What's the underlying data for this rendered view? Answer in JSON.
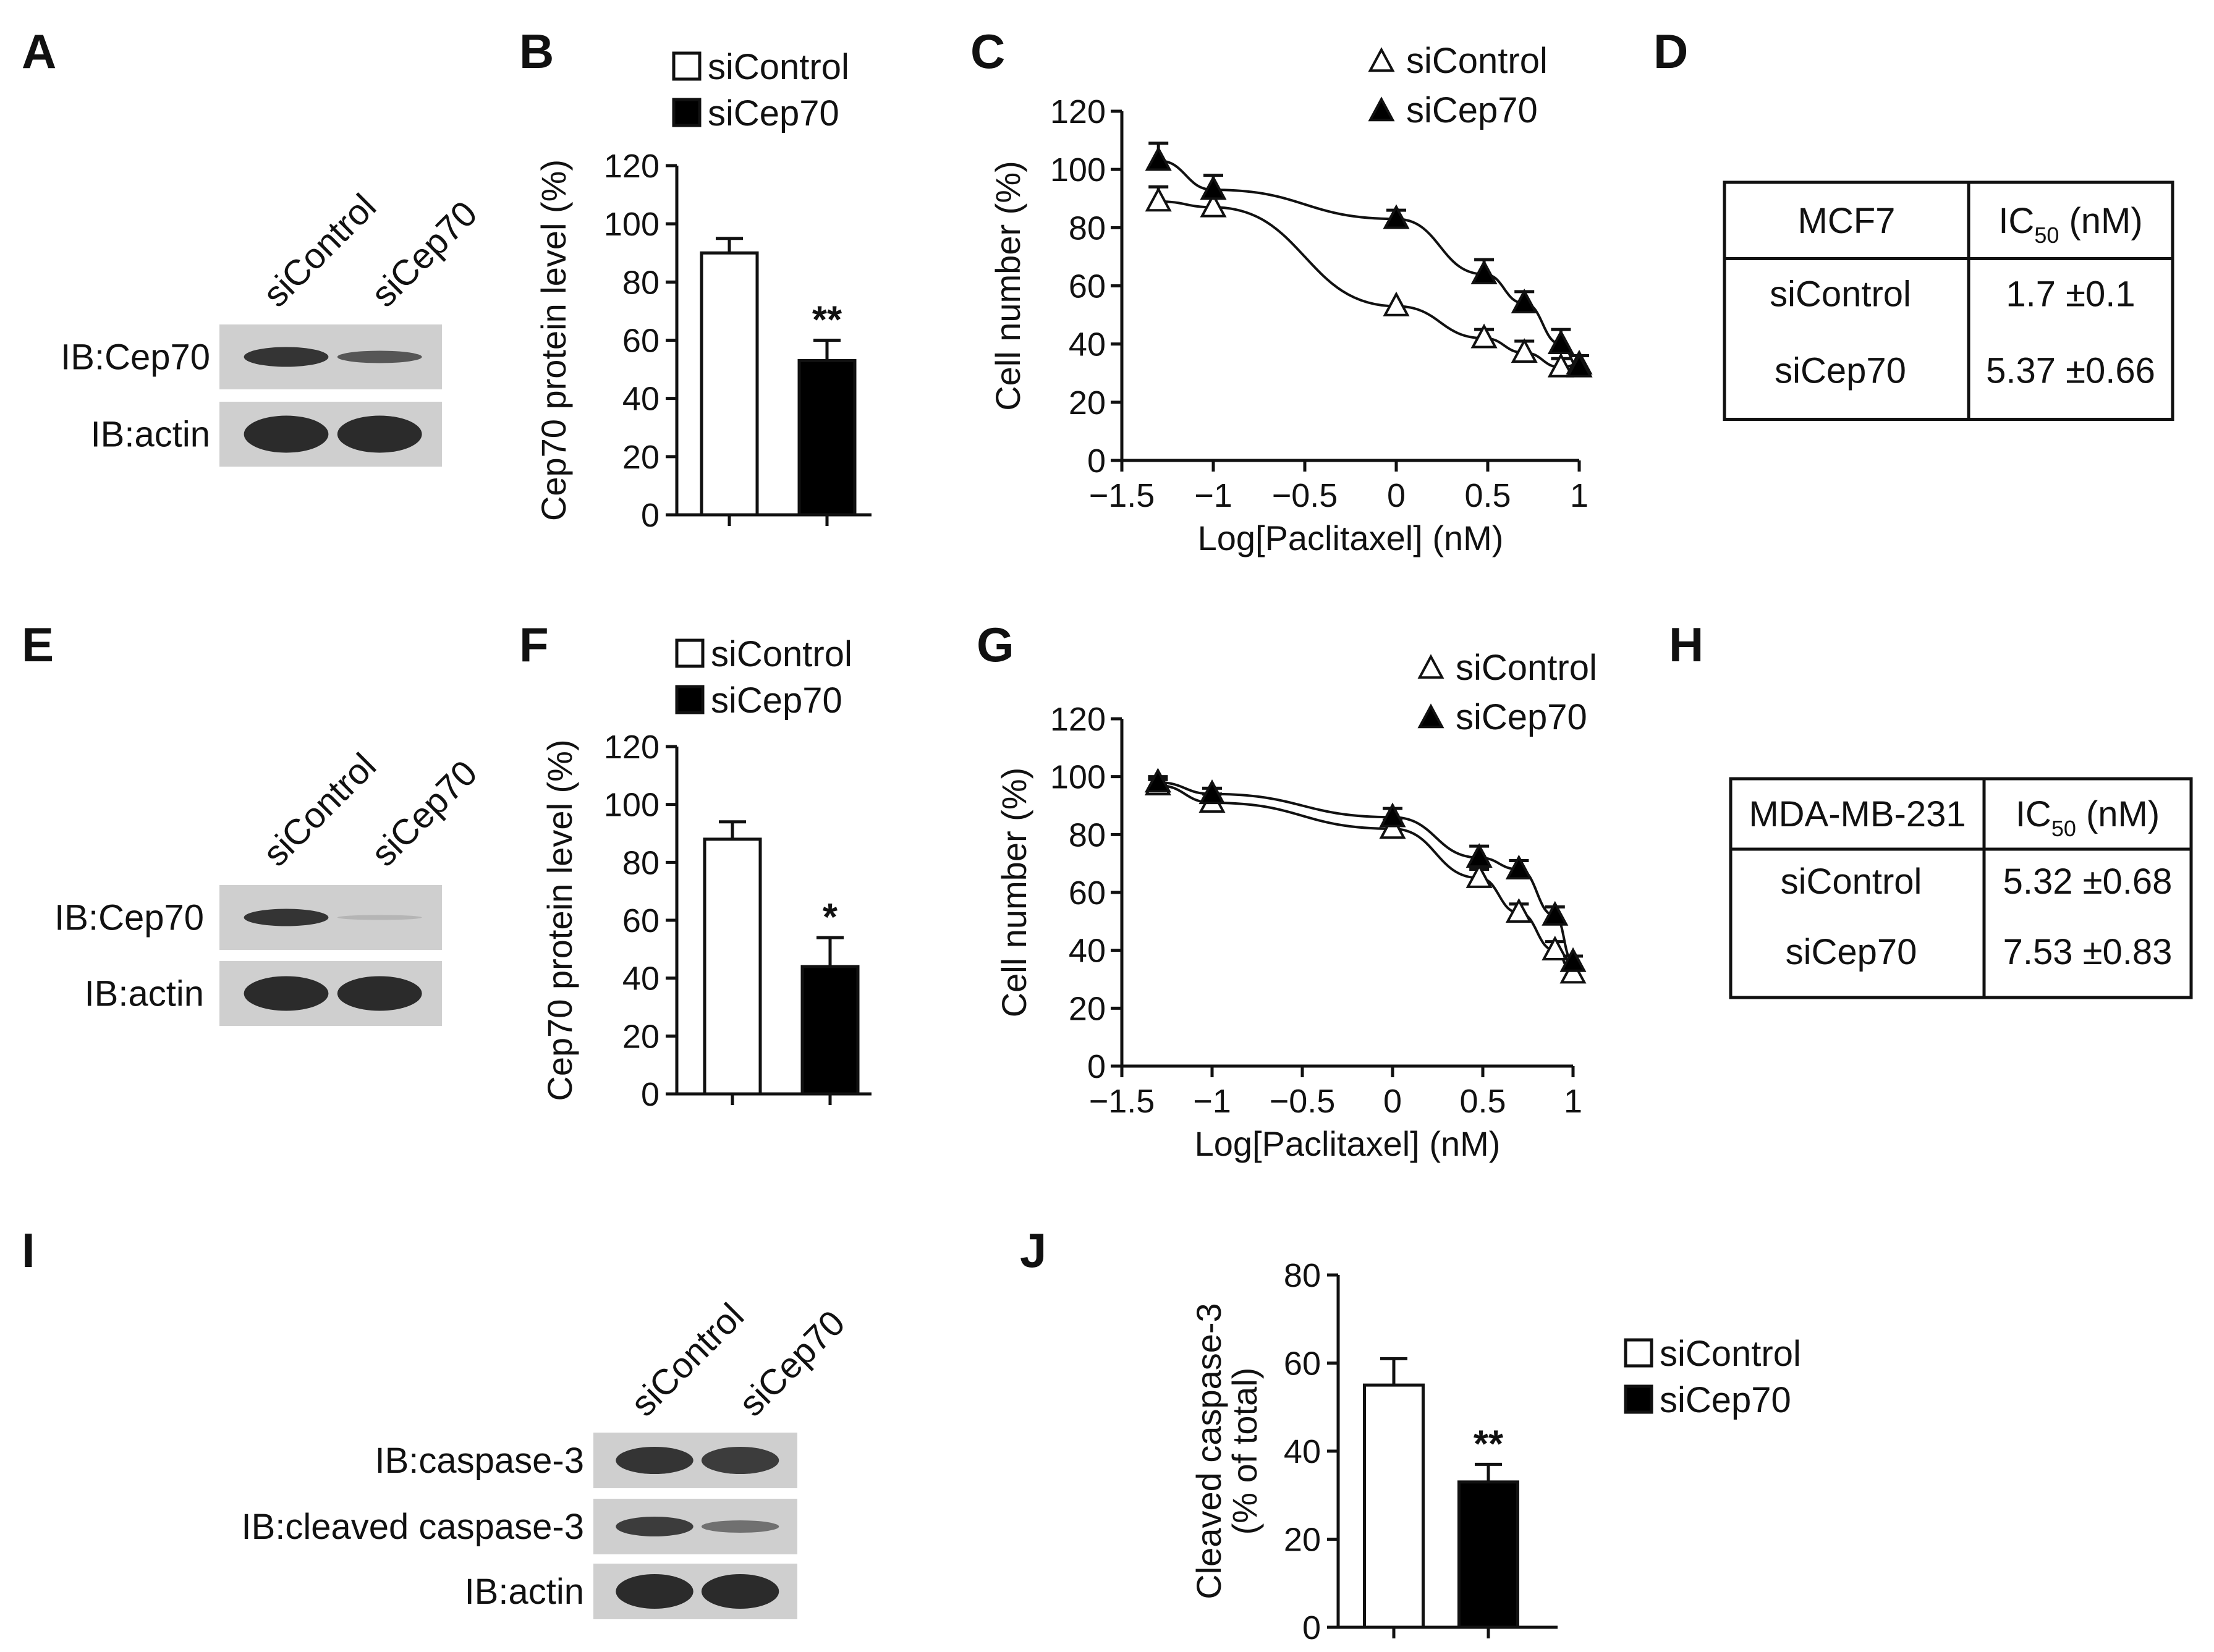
{
  "panels": {
    "A": {
      "label": "A",
      "lanes": [
        "siControl",
        "siCep70"
      ],
      "rows": [
        "IB:Cep70",
        "IB:actin"
      ]
    },
    "B": {
      "label": "B"
    },
    "C": {
      "label": "C"
    },
    "D": {
      "label": "D",
      "header": {
        "cell_line": "MCF7",
        "ic50": "IC",
        "ic50_sub": "50",
        "ic50_unit": " (nM)"
      },
      "rows": [
        {
          "name": "siControl",
          "value": "1.7 ±0.1"
        },
        {
          "name": "siCep70",
          "value": "5.37 ±0.66"
        }
      ]
    },
    "E": {
      "label": "E",
      "lanes": [
        "siControl",
        "siCep70"
      ],
      "rows": [
        "IB:Cep70",
        "IB:actin"
      ]
    },
    "F": {
      "label": "F"
    },
    "G": {
      "label": "G"
    },
    "H": {
      "label": "H",
      "header": {
        "cell_line": "MDA-MB-231",
        "ic50": "IC",
        "ic50_sub": "50",
        "ic50_unit": " (nM)"
      },
      "rows": [
        {
          "name": "siControl",
          "value": "5.32 ±0.68"
        },
        {
          "name": "siCep70",
          "value": "7.53 ±0.83"
        }
      ]
    },
    "I": {
      "label": "I",
      "lanes": [
        "siControl",
        "siCep70"
      ],
      "rows": [
        "IB:caspase-3",
        "IB:cleaved caspase-3",
        "IB:actin"
      ]
    },
    "J": {
      "label": "J"
    }
  },
  "colors": {
    "open": "#ffffff",
    "filled": "#000000",
    "band": "#222222",
    "blot_bg": "#cfcfcf"
  },
  "chart_data": [
    {
      "id": "B",
      "type": "bar",
      "categories": [
        "siControl",
        "siCep70"
      ],
      "values": [
        90,
        53
      ],
      "errors": [
        5,
        7
      ],
      "significance": [
        "",
        "**"
      ],
      "ylabel": "Cep70 protein level (%)",
      "ylim": [
        0,
        120
      ],
      "yticks": [
        0,
        20,
        40,
        60,
        80,
        100,
        120
      ],
      "legend": [
        "siControl",
        "siCep70"
      ]
    },
    {
      "id": "C",
      "type": "scatter",
      "xlabel": "Log[Paclitaxel] (nM)",
      "ylabel": "Cell number (%)",
      "xlim": [
        -1.5,
        1
      ],
      "ylim": [
        0,
        120
      ],
      "xticks": [
        -1.5,
        -1,
        -0.5,
        0,
        0.5,
        1
      ],
      "yticks": [
        0,
        20,
        40,
        60,
        80,
        100,
        120
      ],
      "series": [
        {
          "name": "siControl",
          "marker": "open-triangle",
          "x": [
            -1.3,
            -1,
            0,
            0.48,
            0.7,
            0.9,
            1
          ],
          "y": [
            89,
            87,
            53,
            42,
            37,
            32,
            33
          ],
          "errors": [
            5,
            4,
            0,
            3,
            4,
            3,
            3
          ]
        },
        {
          "name": "siCep70",
          "marker": "filled-triangle",
          "x": [
            -1.3,
            -1,
            0,
            0.48,
            0.7,
            0.9,
            1
          ],
          "y": [
            103,
            93,
            83,
            64,
            54,
            40,
            32
          ],
          "errors": [
            6,
            5,
            3,
            5,
            4,
            5,
            4
          ]
        }
      ]
    },
    {
      "id": "F",
      "type": "bar",
      "categories": [
        "siControl",
        "siCep70"
      ],
      "values": [
        88,
        44
      ],
      "errors": [
        6,
        10
      ],
      "significance": [
        "",
        "*"
      ],
      "ylabel": "Cep70 protein level (%)",
      "ylim": [
        0,
        120
      ],
      "yticks": [
        0,
        20,
        40,
        60,
        80,
        100,
        120
      ],
      "legend": [
        "siControl",
        "siCep70"
      ]
    },
    {
      "id": "G",
      "type": "scatter",
      "xlabel": "Log[Paclitaxel] (nM)",
      "ylabel": "Cell number (%)",
      "xlim": [
        -1.5,
        1
      ],
      "ylim": [
        0,
        120
      ],
      "xticks": [
        -1.5,
        -1,
        -0.5,
        0,
        0.5,
        1
      ],
      "yticks": [
        0,
        20,
        40,
        60,
        80,
        100,
        120
      ],
      "series": [
        {
          "name": "siControl",
          "marker": "open-triangle",
          "x": [
            -1.3,
            -1,
            0,
            0.48,
            0.7,
            0.9,
            1
          ],
          "y": [
            97,
            91,
            82,
            65,
            53,
            40,
            32
          ],
          "errors": [
            2,
            3,
            3,
            3,
            3,
            3,
            2
          ]
        },
        {
          "name": "siCep70",
          "marker": "filled-triangle",
          "x": [
            -1.3,
            -1,
            0,
            0.48,
            0.7,
            0.9,
            1
          ],
          "y": [
            98,
            94,
            86,
            72,
            68,
            52,
            36
          ],
          "errors": [
            2,
            2,
            3,
            4,
            3,
            3,
            2
          ]
        }
      ]
    },
    {
      "id": "J",
      "type": "bar",
      "categories": [
        "siControl",
        "siCep70"
      ],
      "values": [
        55,
        33
      ],
      "errors": [
        6,
        4
      ],
      "significance": [
        "",
        "**"
      ],
      "ylabel": "Cleaved caspase-3 (% of total)",
      "ylabel_lines": [
        "Cleaved caspase-3",
        "(% of total)"
      ],
      "ylim": [
        0,
        80
      ],
      "yticks": [
        0,
        20,
        40,
        60,
        80
      ],
      "legend": [
        "siControl",
        "siCep70"
      ]
    }
  ]
}
